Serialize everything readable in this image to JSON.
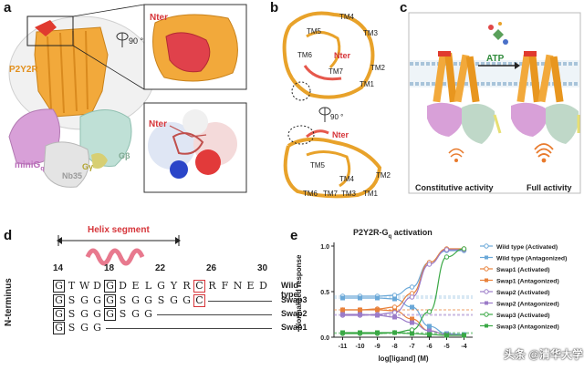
{
  "panels": {
    "a": {
      "label": "a",
      "rotation": "90 °",
      "receptor": "P2Y2R",
      "gq_label": "miniG",
      "gq_sub": "q",
      "gy": "Gγ",
      "gb": "Gβ",
      "nb": "Nb35",
      "nter_top": "Nter",
      "nter_bottom": "Nter"
    },
    "b": {
      "label": "b",
      "rotation": "90 °",
      "nter_top": "Nter",
      "nter_bottom": "Nter",
      "tm_top": [
        "TM4",
        "TM5",
        "TM3",
        "TM6",
        "TM7",
        "TM2",
        "TM1"
      ],
      "tm_bottom": [
        "TM5",
        "TM4",
        "TM2",
        "TM6",
        "TM7",
        "TM3",
        "TM1"
      ]
    },
    "c": {
      "label": "c",
      "atp": "ATP",
      "left_caption": "Constitutive activity",
      "right_caption": "Full activity"
    },
    "d": {
      "label": "d",
      "helix_label": "Helix segment",
      "y_label": "N-terminus",
      "positions": [
        "14",
        "18",
        "22",
        "26",
        "30"
      ],
      "rows": [
        {
          "seq": [
            "G",
            "T",
            "W",
            "D",
            "G",
            "D",
            "E",
            "L",
            "G",
            "Y",
            "R",
            "C",
            "R",
            "F",
            "N",
            "E",
            "D"
          ],
          "name": "Wild-type"
        },
        {
          "seq": [
            "G",
            "S",
            "G",
            "G",
            "G",
            "S",
            "G",
            "G",
            "S",
            "G",
            "G",
            "C"
          ],
          "name": "Swap3"
        },
        {
          "seq": [
            "G",
            "S",
            "G",
            "G",
            "G",
            "S",
            "G",
            "G"
          ],
          "name": "Swap2"
        },
        {
          "seq": [
            "G",
            "S",
            "G",
            "G"
          ],
          "name": "Swap1"
        }
      ]
    },
    "e": {
      "label": "e"
    }
  },
  "watermark": "头条 @清华大学",
  "chart_data": {
    "type": "line",
    "title": "P2Y2R-Gq activation",
    "title_main": "P2Y2R-G",
    "title_sub": "q",
    "title_tail": " activation",
    "xlabel": "log[ligand] (M)",
    "ylabel": "Normalized response",
    "x": [
      -11,
      -10,
      -9,
      -8,
      -7,
      -6,
      -5,
      -4
    ],
    "xticks": [
      "-11",
      "-10",
      "-9",
      "-8",
      "-7",
      "-6",
      "-5",
      "-4"
    ],
    "yticks": [
      "0.0",
      "0.5",
      "1.0"
    ],
    "ylim": [
      0,
      1
    ],
    "series": [
      {
        "name": "Wild type (Activated)",
        "color": "#6aa8d8",
        "marker": "circle",
        "values": [
          0.45,
          0.45,
          0.45,
          0.46,
          0.55,
          0.82,
          0.95,
          0.95
        ]
      },
      {
        "name": "Wild type (Antagonized)",
        "color": "#6aa8d8",
        "marker": "square",
        "values": [
          0.43,
          0.43,
          0.43,
          0.42,
          0.33,
          0.12,
          0.04,
          0.03
        ]
      },
      {
        "name": "Swap1 (Activated)",
        "color": "#e8813a",
        "marker": "circle",
        "values": [
          0.3,
          0.3,
          0.31,
          0.33,
          0.48,
          0.82,
          0.97,
          0.97
        ]
      },
      {
        "name": "Swap1 (Antagonized)",
        "color": "#e8813a",
        "marker": "square",
        "values": [
          0.3,
          0.3,
          0.3,
          0.29,
          0.2,
          0.07,
          0.03,
          0.02
        ]
      },
      {
        "name": "Swap2 (Activated)",
        "color": "#9b7bc8",
        "marker": "circle",
        "values": [
          0.24,
          0.24,
          0.25,
          0.27,
          0.44,
          0.8,
          0.96,
          0.96
        ]
      },
      {
        "name": "Swap2 (Antagonized)",
        "color": "#9b7bc8",
        "marker": "square",
        "values": [
          0.25,
          0.25,
          0.24,
          0.22,
          0.16,
          0.07,
          0.03,
          0.02
        ]
      },
      {
        "name": "Swap3 (Activated)",
        "color": "#3aa845",
        "marker": "circle",
        "values": [
          0.04,
          0.04,
          0.04,
          0.05,
          0.08,
          0.28,
          0.88,
          0.97
        ]
      },
      {
        "name": "Swap3 (Antagonized)",
        "color": "#3aa845",
        "marker": "square",
        "values": [
          0.05,
          0.05,
          0.05,
          0.05,
          0.04,
          0.03,
          0.02,
          0.02
        ]
      }
    ],
    "legend": "right"
  }
}
